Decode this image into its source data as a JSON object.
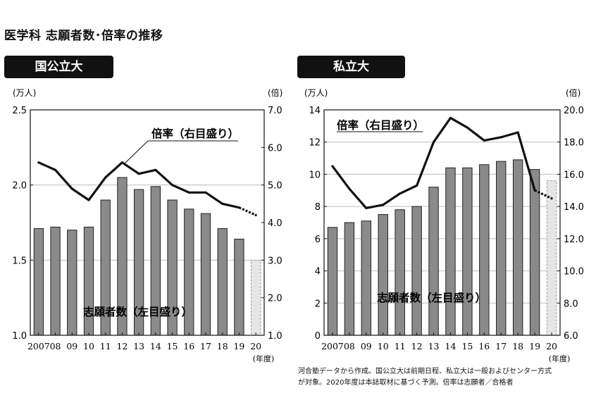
{
  "title": "医学科 志願者数･倍率の推移",
  "footnote": {
    "line1": "河合塾データから作成。国公立大は前期日程、私立大は一般およびセンター方式",
    "line2": "が対象。2020年度は本誌取材に基づく予測。倍率は志願者／合格者"
  },
  "chart_data": [
    {
      "type": "bar",
      "panel_label": "国公立大",
      "categories": [
        "2007",
        "08",
        "09",
        "10",
        "11",
        "12",
        "13",
        "14",
        "15",
        "16",
        "17",
        "18",
        "19",
        "20"
      ],
      "xunit": "(年度)",
      "left_axis": {
        "unit": "(万人)",
        "ticks": [
          "1.0",
          "1.5",
          "2.0",
          "2.5"
        ],
        "ylim": [
          1.0,
          2.5
        ]
      },
      "right_axis": {
        "unit": "(倍)",
        "ticks": [
          "1.0",
          "2.0",
          "3.0",
          "4.0",
          "5.0",
          "6.0",
          "7.0"
        ],
        "ylim": [
          1.0,
          7.0
        ]
      },
      "grid": true,
      "series": [
        {
          "name": "志願者数（左目盛り）",
          "type": "bar",
          "axis": "left",
          "values": [
            1.71,
            1.72,
            1.7,
            1.72,
            1.9,
            2.05,
            1.97,
            1.99,
            1.9,
            1.84,
            1.81,
            1.71,
            1.64,
            1.5
          ],
          "forecast_from_index": 13,
          "color": "#8a8a8a",
          "forecast_color": "#e6e6e6"
        },
        {
          "name": "倍率（右目盛り）",
          "type": "line",
          "axis": "right",
          "values": [
            5.6,
            5.4,
            4.9,
            4.6,
            5.2,
            5.6,
            5.3,
            5.4,
            5.0,
            4.8,
            4.8,
            4.5,
            4.4,
            4.2
          ],
          "forecast_from_index": 13,
          "color": "#111111"
        }
      ],
      "annotations": [
        "倍率（右目盛り）",
        "志願者数（左目盛り）"
      ]
    },
    {
      "type": "bar",
      "panel_label": "私立大",
      "categories": [
        "2007",
        "08",
        "09",
        "10",
        "11",
        "12",
        "13",
        "14",
        "15",
        "16",
        "17",
        "18",
        "19",
        "20"
      ],
      "xunit": "(年度)",
      "left_axis": {
        "unit": "(万人)",
        "ticks": [
          "0",
          "2",
          "4",
          "6",
          "8",
          "10",
          "12",
          "14"
        ],
        "ylim": [
          0,
          14
        ]
      },
      "right_axis": {
        "unit": "(倍)",
        "ticks": [
          "6.0",
          "8.0",
          "10.0",
          "12.0",
          "14.0",
          "16.0",
          "18.0",
          "20.0"
        ],
        "ylim": [
          6.0,
          20.0
        ]
      },
      "grid": true,
      "series": [
        {
          "name": "志願者数（左目盛り）",
          "type": "bar",
          "axis": "left",
          "values": [
            6.7,
            7.0,
            7.1,
            7.5,
            7.8,
            8.0,
            9.2,
            10.4,
            10.4,
            10.6,
            10.8,
            10.9,
            10.3,
            9.6
          ],
          "forecast_from_index": 13,
          "color": "#8a8a8a",
          "forecast_color": "#e6e6e6"
        },
        {
          "name": "倍率（右目盛り）",
          "type": "line",
          "axis": "right",
          "values": [
            16.5,
            15.1,
            13.9,
            14.1,
            14.8,
            15.3,
            18.0,
            19.5,
            18.9,
            18.1,
            18.3,
            18.6,
            15.0,
            14.5
          ],
          "forecast_from_index": 13,
          "color": "#111111"
        }
      ],
      "annotations": [
        "倍率（右目盛り）",
        "志願者数（左目盛り）"
      ]
    }
  ]
}
